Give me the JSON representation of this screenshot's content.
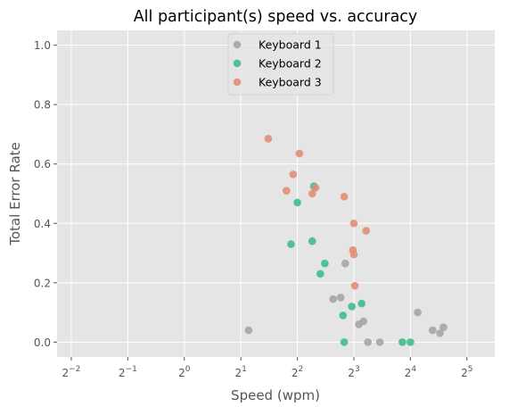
{
  "chart_data": {
    "type": "scatter",
    "title": "All participant(s) speed vs. accuracy",
    "xlabel": "Speed (wpm)",
    "ylabel": "Total Error Rate",
    "xscale": "log2",
    "xlim": [
      0.21,
      45
    ],
    "ylim": [
      -0.05,
      1.05
    ],
    "xticks": [
      {
        "value": 0.25,
        "base": "2",
        "exp": "−2"
      },
      {
        "value": 0.5,
        "base": "2",
        "exp": "−1"
      },
      {
        "value": 1,
        "base": "2",
        "exp": "0"
      },
      {
        "value": 2,
        "base": "2",
        "exp": "1"
      },
      {
        "value": 4,
        "base": "2",
        "exp": "2"
      },
      {
        "value": 8,
        "base": "2",
        "exp": "3"
      },
      {
        "value": 16,
        "base": "2",
        "exp": "4"
      },
      {
        "value": 32,
        "base": "2",
        "exp": "5"
      }
    ],
    "yticks": [
      "0.0",
      "0.2",
      "0.4",
      "0.6",
      "0.8",
      "1.0"
    ],
    "grid": true,
    "legend_position": "top-center",
    "background": "#e5e5e5",
    "series": [
      {
        "name": "Keyboard 1",
        "color": "#a5a5a5",
        "points": [
          [
            2.2,
            0.04
          ],
          [
            6.2,
            0.145
          ],
          [
            6.8,
            0.15
          ],
          [
            7.2,
            0.265
          ],
          [
            8.5,
            0.06
          ],
          [
            9.0,
            0.07
          ],
          [
            9.5,
            0.0
          ],
          [
            11.0,
            0.0
          ],
          [
            17.5,
            0.1
          ],
          [
            21.0,
            0.04
          ],
          [
            23.0,
            0.03
          ],
          [
            24.0,
            0.05
          ]
        ]
      },
      {
        "name": "Keyboard 2",
        "color": "#3fbc88",
        "points": [
          [
            3.7,
            0.33
          ],
          [
            4.0,
            0.47
          ],
          [
            4.8,
            0.34
          ],
          [
            4.9,
            0.525
          ],
          [
            5.3,
            0.23
          ],
          [
            5.6,
            0.265
          ],
          [
            7.0,
            0.09
          ],
          [
            7.1,
            0.0
          ],
          [
            7.8,
            0.12
          ],
          [
            8.8,
            0.13
          ],
          [
            14.5,
            0.0
          ],
          [
            16.0,
            0.0
          ]
        ]
      },
      {
        "name": "Keyboard 3",
        "color": "#e08e74",
        "points": [
          [
            2.8,
            0.685
          ],
          [
            3.5,
            0.51
          ],
          [
            3.8,
            0.565
          ],
          [
            4.1,
            0.635
          ],
          [
            4.8,
            0.5
          ],
          [
            5.0,
            0.52
          ],
          [
            7.1,
            0.49
          ],
          [
            8.0,
            0.4
          ],
          [
            7.9,
            0.31
          ],
          [
            8.0,
            0.295
          ],
          [
            8.1,
            0.19
          ],
          [
            9.3,
            0.375
          ]
        ]
      }
    ]
  }
}
